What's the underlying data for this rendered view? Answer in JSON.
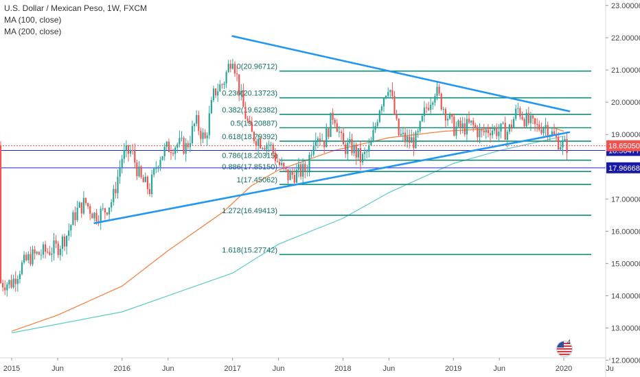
{
  "legend": {
    "title": "U.S. Dollar / Mexican Peso, 1W, FXCM",
    "ma100": "MA (100, close)",
    "ma200": "MA (200, close)"
  },
  "badge_count": "4",
  "colors": {
    "bull": "#26a69a",
    "bear": "#ef5350",
    "ma100": "#f57c3a",
    "ma200": "#5cc9c9",
    "trendline": "#2196f3",
    "fib": "#0f8d7a",
    "hline": "#1f1fd6",
    "price_label": "#ef5350",
    "hline_label": "#1a1aa8"
  },
  "chart_data": {
    "type": "candlestick",
    "symbol": "USDMXN",
    "timeframe": "1W",
    "ylim": [
      12.0,
      23.0
    ],
    "y_ticks": [
      "12.00000",
      "13.00000",
      "14.00000",
      "15.00000",
      "16.00000",
      "17.00000",
      "18.00000",
      "19.00000",
      "20.00000",
      "21.00000",
      "22.00000",
      "23.00000"
    ],
    "x_ticks": [
      "2015",
      "Jun",
      "2016",
      "Jun",
      "2017",
      "Jun",
      "2018",
      "Jun",
      "2019",
      "Jun",
      "2020",
      "Ju"
    ],
    "x_tick_dates": [
      "2015-01",
      "2015-06",
      "2016-01",
      "2016-06",
      "2017-01",
      "2017-06",
      "2018-01",
      "2018-06",
      "2019-01",
      "2019-06",
      "2020-01",
      "2020-06"
    ],
    "price_path": [
      [
        "2015-01",
        14.4
      ],
      [
        "2015-02",
        14.9
      ],
      [
        "2015-03",
        15.2
      ],
      [
        "2015-04",
        15.3
      ],
      [
        "2015-05",
        15.4
      ],
      [
        "2015-06",
        15.5
      ],
      [
        "2015-07",
        15.9
      ],
      [
        "2015-08",
        16.6
      ],
      [
        "2015-09",
        16.9
      ],
      [
        "2015-10",
        16.5
      ],
      [
        "2015-11",
        16.6
      ],
      [
        "2015-12",
        17.0
      ],
      [
        "2016-01",
        18.3
      ],
      [
        "2016-02",
        18.5
      ],
      [
        "2016-03",
        17.6
      ],
      [
        "2016-04",
        17.3
      ],
      [
        "2016-05",
        18.3
      ],
      [
        "2016-06",
        18.6
      ],
      [
        "2016-07",
        18.7
      ],
      [
        "2016-08",
        18.6
      ],
      [
        "2016-09",
        19.4
      ],
      [
        "2016-10",
        18.8
      ],
      [
        "2016-11",
        20.3
      ],
      [
        "2016-12",
        20.6
      ],
      [
        "2017-01",
        21.5
      ],
      [
        "2017-02",
        20.0
      ],
      [
        "2017-03",
        19.0
      ],
      [
        "2017-04",
        18.8
      ],
      [
        "2017-05",
        18.7
      ],
      [
        "2017-06",
        18.1
      ],
      [
        "2017-07",
        17.7
      ],
      [
        "2017-08",
        17.8
      ],
      [
        "2017-09",
        17.9
      ],
      [
        "2017-10",
        19.1
      ],
      [
        "2017-11",
        18.8
      ],
      [
        "2017-12",
        19.7
      ],
      [
        "2018-01",
        18.6
      ],
      [
        "2018-02",
        18.6
      ],
      [
        "2018-03",
        18.2
      ],
      [
        "2018-04",
        18.6
      ],
      [
        "2018-05",
        19.9
      ],
      [
        "2018-06",
        20.6
      ],
      [
        "2018-07",
        19.0
      ],
      [
        "2018-08",
        18.8
      ],
      [
        "2018-09",
        18.8
      ],
      [
        "2018-10",
        19.8
      ],
      [
        "2018-11",
        20.4
      ],
      [
        "2018-12",
        19.8
      ],
      [
        "2019-01",
        19.2
      ],
      [
        "2019-02",
        19.2
      ],
      [
        "2019-03",
        19.3
      ],
      [
        "2019-04",
        19.0
      ],
      [
        "2019-05",
        19.2
      ],
      [
        "2019-06",
        19.1
      ],
      [
        "2019-07",
        19.1
      ],
      [
        "2019-08",
        19.8
      ],
      [
        "2019-09",
        19.4
      ],
      [
        "2019-10",
        19.2
      ],
      [
        "2019-11",
        19.3
      ],
      [
        "2019-12",
        18.9
      ],
      [
        "2020-01",
        18.65
      ]
    ],
    "series": [
      {
        "name": "MA (100, close)",
        "points": [
          [
            "2015-01",
            12.9
          ],
          [
            "2015-06",
            13.4
          ],
          [
            "2016-01",
            14.3
          ],
          [
            "2016-06",
            15.4
          ],
          [
            "2016-12",
            16.6
          ],
          [
            "2017-03",
            17.4
          ],
          [
            "2017-06",
            17.9
          ],
          [
            "2017-12",
            18.5
          ],
          [
            "2018-06",
            18.9
          ],
          [
            "2018-12",
            19.1
          ],
          [
            "2019-06",
            19.2
          ],
          [
            "2019-12",
            19.2
          ],
          [
            "2020-01",
            19.1
          ]
        ]
      },
      {
        "name": "MA (200, close)",
        "points": [
          [
            "2015-01",
            12.85
          ],
          [
            "2016-01",
            13.5
          ],
          [
            "2016-06",
            14.0
          ],
          [
            "2017-01",
            14.7
          ],
          [
            "2017-06",
            15.6
          ],
          [
            "2018-01",
            16.4
          ],
          [
            "2018-06",
            17.2
          ],
          [
            "2019-01",
            18.1
          ],
          [
            "2019-06",
            18.5
          ],
          [
            "2020-01",
            18.95
          ]
        ]
      }
    ],
    "trendlines": [
      {
        "from": [
          "2015-10",
          16.25
        ],
        "to": [
          "2020-01",
          19.07
        ]
      },
      {
        "from": [
          "2017-01",
          22.05
        ],
        "to": [
          "2020-01",
          19.72
        ]
      }
    ],
    "fib_levels": [
      {
        "label": "0(20.96712)",
        "value": 20.96712
      },
      {
        "label": "0.236(20.13723)",
        "value": 20.13723
      },
      {
        "label": "0.382(19.62382)",
        "value": 19.62382
      },
      {
        "label": "0.5(19.20887)",
        "value": 19.20887
      },
      {
        "label": "0.618(18.79392)",
        "value": 18.79392
      },
      {
        "label": "0.786(18.20315)",
        "value": 18.20315
      },
      {
        "label": "0.886(17.85150)",
        "value": 17.8515
      },
      {
        "label": "1(17.45062)",
        "value": 17.45062
      },
      {
        "label": "1.272(16.49413)",
        "value": 16.49413
      },
      {
        "label": "1.618(15.27742)",
        "value": 15.27742
      }
    ],
    "horizontal_lines": [
      {
        "label": "18.50477",
        "value": 18.50477
      },
      {
        "label": "17.96668",
        "value": 17.96668
      }
    ],
    "last_price": {
      "label": "18.65050",
      "value": 18.6505
    }
  }
}
